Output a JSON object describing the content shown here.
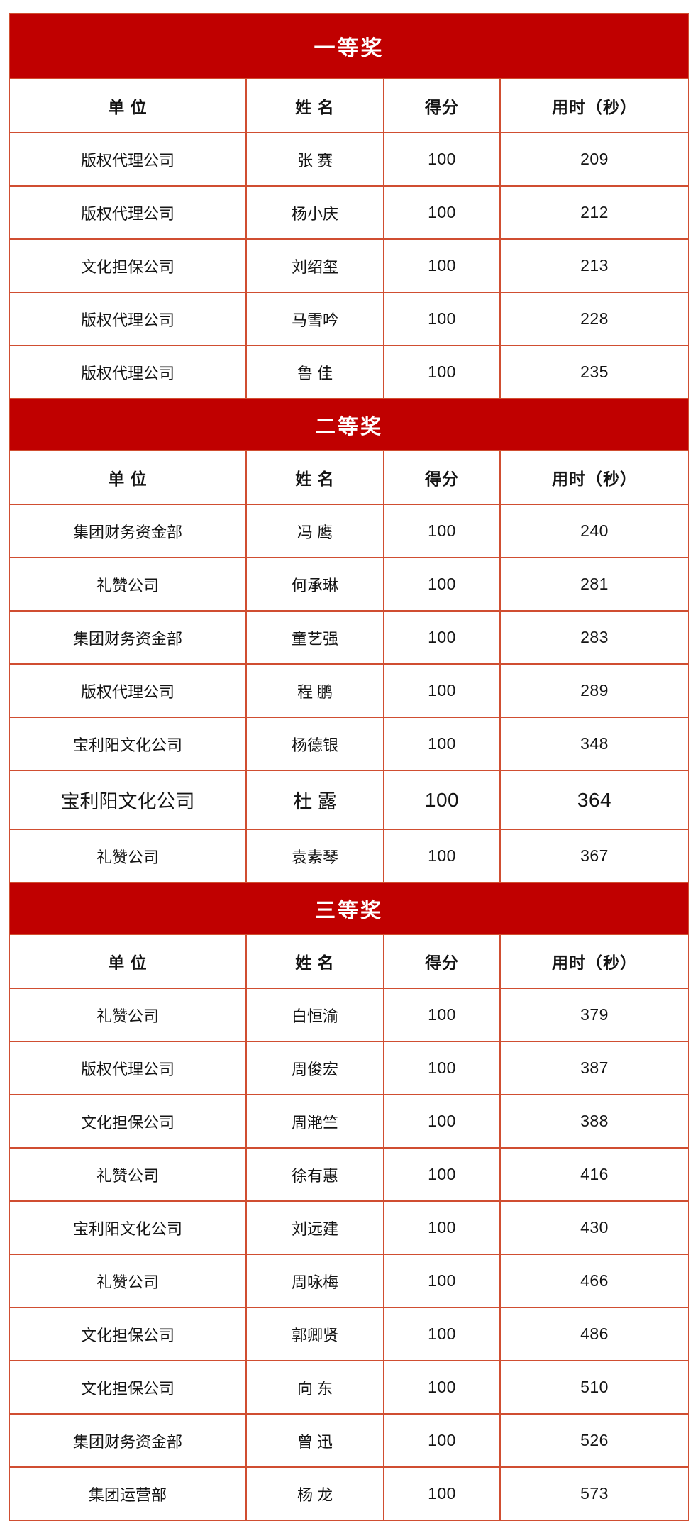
{
  "page": {
    "background": "#ffffff"
  },
  "table": {
    "border_color": "#D04E31",
    "banner_bg": "#C00000",
    "banner_text_color": "#ffffff",
    "columns": [
      "单 位",
      "姓 名",
      "得分",
      "用时（秒）"
    ],
    "sections": [
      {
        "title": "一等奖",
        "rows": [
          [
            "版权代理公司",
            "张 赛",
            "100",
            "209"
          ],
          [
            "版权代理公司",
            "杨小庆",
            "100",
            "212"
          ],
          [
            "文化担保公司",
            "刘绍玺",
            "100",
            "213"
          ],
          [
            "版权代理公司",
            "马雪吟",
            "100",
            "228"
          ],
          [
            "版权代理公司",
            "鲁 佳",
            "100",
            "235"
          ]
        ]
      },
      {
        "title": "二等奖",
        "emphasized_row": 5,
        "rows": [
          [
            "集团财务资金部",
            "冯 鹰",
            "100",
            "240"
          ],
          [
            "礼赞公司",
            "何承琳",
            "100",
            "281"
          ],
          [
            "集团财务资金部",
            "童艺强",
            "100",
            "283"
          ],
          [
            "版权代理公司",
            "程 鹏",
            "100",
            "289"
          ],
          [
            "宝利阳文化公司",
            "杨德银",
            "100",
            "348"
          ],
          [
            "宝利阳文化公司",
            "杜 露",
            "100",
            "364"
          ],
          [
            "礼赞公司",
            "袁素琴",
            "100",
            "367"
          ]
        ]
      },
      {
        "title": "三等奖",
        "rows": [
          [
            "礼赞公司",
            "白恒渝",
            "100",
            "379"
          ],
          [
            "版权代理公司",
            "周俊宏",
            "100",
            "387"
          ],
          [
            "文化担保公司",
            "周滟竺",
            "100",
            "388"
          ],
          [
            "礼赞公司",
            "徐有惠",
            "100",
            "416"
          ],
          [
            "宝利阳文化公司",
            "刘远建",
            "100",
            "430"
          ],
          [
            "礼赞公司",
            "周咏梅",
            "100",
            "466"
          ],
          [
            "文化担保公司",
            "郭卿贤",
            "100",
            "486"
          ],
          [
            "文化担保公司",
            "向 东",
            "100",
            "510"
          ],
          [
            "集团财务资金部",
            "曾 迅",
            "100",
            "526"
          ],
          [
            "集团运营部",
            "杨 龙",
            "100",
            "573"
          ]
        ]
      }
    ]
  }
}
